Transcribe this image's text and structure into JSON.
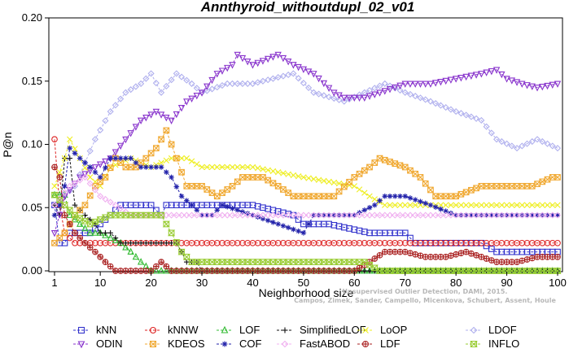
{
  "chart_data": {
    "type": "line",
    "title": "Annthyroid_withoutdupl_02_v01",
    "xlabel": "Neighborhood size",
    "ylabel": "P@n",
    "xlim": [
      1,
      100
    ],
    "ylim": [
      0,
      0.2
    ],
    "xticks": [
      "1",
      "10",
      "20",
      "30",
      "40",
      "50",
      "60",
      "70",
      "80",
      "90",
      "100"
    ],
    "yticks": [
      "0.00",
      "0.05",
      "0.10",
      "0.15",
      "0.20"
    ],
    "grid": false,
    "legend_position": "bottom",
    "annotation": "Campos, Zimek, Sander, Campello, Micenkova, Schubert, Assent, Houle",
    "annotation_line1": "Unsupervised Outlier Detection, DAMI, 2015.",
    "series": [
      {
        "name": "kNN",
        "color": "#3333cc",
        "marker": "square",
        "points": [
          [
            1,
            0.052
          ],
          [
            2,
            0.022
          ],
          [
            3,
            0.022
          ],
          [
            4,
            0.03
          ],
          [
            8,
            0.03
          ],
          [
            10,
            0.037
          ],
          [
            12,
            0.044
          ],
          [
            14,
            0.052
          ],
          [
            20,
            0.052
          ],
          [
            22,
            0.044
          ],
          [
            23,
            0.052
          ],
          [
            40,
            0.052
          ],
          [
            48,
            0.044
          ],
          [
            50,
            0.037
          ],
          [
            55,
            0.037
          ],
          [
            63,
            0.03
          ],
          [
            70,
            0.03
          ],
          [
            72,
            0.022
          ],
          [
            85,
            0.022
          ],
          [
            88,
            0.015
          ],
          [
            95,
            0.015
          ],
          [
            100,
            0.015
          ]
        ]
      },
      {
        "name": "kNNW",
        "color": "#dd2222",
        "marker": "circle",
        "points": [
          [
            1,
            0.104
          ],
          [
            2,
            0.052
          ],
          [
            3,
            0.03
          ],
          [
            5,
            0.022
          ],
          [
            100,
            0.022
          ]
        ]
      },
      {
        "name": "LOF",
        "color": "#33bb33",
        "marker": "triangle-up",
        "points": [
          [
            1,
            0.06
          ],
          [
            2,
            0.06
          ],
          [
            3,
            0.06
          ],
          [
            4,
            0.044
          ],
          [
            6,
            0.037
          ],
          [
            8,
            0.03
          ],
          [
            10,
            0.03
          ],
          [
            14,
            0.022
          ],
          [
            16,
            0.015
          ],
          [
            18,
            0.007
          ],
          [
            20,
            0.0
          ],
          [
            100,
            0.0
          ]
        ]
      },
      {
        "name": "SimplifiedLOF",
        "color": "#111111",
        "marker": "plus",
        "points": [
          [
            1,
            0.052
          ],
          [
            2,
            0.044
          ],
          [
            3,
            0.089
          ],
          [
            4,
            0.089
          ],
          [
            5,
            0.052
          ],
          [
            7,
            0.044
          ],
          [
            9,
            0.037
          ],
          [
            10,
            0.03
          ],
          [
            12,
            0.03
          ],
          [
            14,
            0.022
          ],
          [
            25,
            0.022
          ],
          [
            26,
            0.015
          ],
          [
            27,
            0.007
          ],
          [
            29,
            0.007
          ],
          [
            30,
            0.0
          ],
          [
            100,
            0.0
          ]
        ]
      },
      {
        "name": "LoOP",
        "color": "#eeee22",
        "marker": "x",
        "points": [
          [
            1,
            0.067
          ],
          [
            3,
            0.089
          ],
          [
            4,
            0.104
          ],
          [
            6,
            0.089
          ],
          [
            8,
            0.074
          ],
          [
            10,
            0.067
          ],
          [
            12,
            0.082
          ],
          [
            16,
            0.089
          ],
          [
            20,
            0.082
          ],
          [
            24,
            0.089
          ],
          [
            27,
            0.089
          ],
          [
            30,
            0.082
          ],
          [
            40,
            0.082
          ],
          [
            50,
            0.074
          ],
          [
            60,
            0.067
          ],
          [
            63,
            0.059
          ],
          [
            66,
            0.052
          ],
          [
            100,
            0.052
          ]
        ]
      },
      {
        "name": "LDOF",
        "color": "#b0b0ee",
        "marker": "diamond",
        "points": [
          [
            1,
            0.052
          ],
          [
            5,
            0.067
          ],
          [
            9,
            0.104
          ],
          [
            12,
            0.126
          ],
          [
            15,
            0.141
          ],
          [
            18,
            0.148
          ],
          [
            20,
            0.156
          ],
          [
            22,
            0.141
          ],
          [
            25,
            0.156
          ],
          [
            28,
            0.148
          ],
          [
            30,
            0.141
          ],
          [
            35,
            0.148
          ],
          [
            40,
            0.148
          ],
          [
            48,
            0.156
          ],
          [
            52,
            0.141
          ],
          [
            58,
            0.134
          ],
          [
            62,
            0.141
          ],
          [
            66,
            0.148
          ],
          [
            70,
            0.141
          ],
          [
            75,
            0.134
          ],
          [
            80,
            0.126
          ],
          [
            85,
            0.119
          ],
          [
            88,
            0.104
          ],
          [
            92,
            0.097
          ],
          [
            96,
            0.104
          ],
          [
            100,
            0.097
          ]
        ]
      },
      {
        "name": "ODIN",
        "color": "#8833cc",
        "marker": "triangle-down",
        "points": [
          [
            1,
            0.03
          ],
          [
            3,
            0.059
          ],
          [
            6,
            0.074
          ],
          [
            9,
            0.082
          ],
          [
            12,
            0.089
          ],
          [
            15,
            0.104
          ],
          [
            18,
            0.119
          ],
          [
            21,
            0.126
          ],
          [
            24,
            0.119
          ],
          [
            27,
            0.134
          ],
          [
            30,
            0.141
          ],
          [
            33,
            0.156
          ],
          [
            36,
            0.163
          ],
          [
            37,
            0.171
          ],
          [
            40,
            0.163
          ],
          [
            45,
            0.171
          ],
          [
            48,
            0.163
          ],
          [
            52,
            0.156
          ],
          [
            56,
            0.141
          ],
          [
            58,
            0.137
          ],
          [
            62,
            0.137
          ],
          [
            65,
            0.141
          ],
          [
            70,
            0.148
          ],
          [
            75,
            0.148
          ],
          [
            80,
            0.152
          ],
          [
            85,
            0.156
          ],
          [
            88,
            0.159
          ],
          [
            90,
            0.152
          ],
          [
            93,
            0.148
          ],
          [
            96,
            0.145
          ],
          [
            100,
            0.148
          ]
        ]
      },
      {
        "name": "KDEOS",
        "color": "#f0a830",
        "marker": "boxed-x",
        "points": [
          [
            1,
            0.022
          ],
          [
            3,
            0.03
          ],
          [
            5,
            0.044
          ],
          [
            7,
            0.052
          ],
          [
            9,
            0.067
          ],
          [
            11,
            0.074
          ],
          [
            13,
            0.089
          ],
          [
            15,
            0.082
          ],
          [
            17,
            0.082
          ],
          [
            19,
            0.089
          ],
          [
            21,
            0.097
          ],
          [
            23,
            0.111
          ],
          [
            25,
            0.089
          ],
          [
            27,
            0.067
          ],
          [
            30,
            0.067
          ],
          [
            33,
            0.059
          ],
          [
            36,
            0.067
          ],
          [
            38,
            0.074
          ],
          [
            42,
            0.074
          ],
          [
            45,
            0.067
          ],
          [
            48,
            0.059
          ],
          [
            52,
            0.059
          ],
          [
            56,
            0.059
          ],
          [
            60,
            0.074
          ],
          [
            63,
            0.082
          ],
          [
            65,
            0.089
          ],
          [
            70,
            0.082
          ],
          [
            73,
            0.074
          ],
          [
            76,
            0.059
          ],
          [
            80,
            0.059
          ],
          [
            85,
            0.067
          ],
          [
            90,
            0.067
          ],
          [
            95,
            0.067
          ],
          [
            99,
            0.074
          ],
          [
            100,
            0.074
          ]
        ]
      },
      {
        "name": "COF",
        "color": "#2222aa",
        "marker": "asterisk",
        "points": [
          [
            1,
            0.044
          ],
          [
            2,
            0.052
          ],
          [
            3,
            0.067
          ],
          [
            4,
            0.097
          ],
          [
            6,
            0.089
          ],
          [
            8,
            0.082
          ],
          [
            10,
            0.074
          ],
          [
            12,
            0.089
          ],
          [
            16,
            0.089
          ],
          [
            18,
            0.082
          ],
          [
            22,
            0.082
          ],
          [
            24,
            0.074
          ],
          [
            26,
            0.059
          ],
          [
            28,
            0.052
          ],
          [
            30,
            0.044
          ],
          [
            32,
            0.044
          ],
          [
            34,
            0.052
          ],
          [
            40,
            0.044
          ],
          [
            50,
            0.03
          ],
          [
            52,
            0.044
          ],
          [
            60,
            0.044
          ],
          [
            64,
            0.052
          ],
          [
            66,
            0.059
          ],
          [
            70,
            0.059
          ],
          [
            75,
            0.052
          ],
          [
            80,
            0.044
          ],
          [
            100,
            0.044
          ]
        ]
      },
      {
        "name": "FastABOD",
        "color": "#f0b0f0",
        "marker": "diamond",
        "points": [
          [
            1,
            0.052
          ],
          [
            4,
            0.067
          ],
          [
            7,
            0.074
          ],
          [
            10,
            0.059
          ],
          [
            13,
            0.052
          ],
          [
            16,
            0.044
          ],
          [
            100,
            0.044
          ]
        ]
      },
      {
        "name": "LDF",
        "color": "#aa2222",
        "marker": "circle-plus",
        "points": [
          [
            1,
            0.082
          ],
          [
            2,
            0.074
          ],
          [
            3,
            0.044
          ],
          [
            5,
            0.03
          ],
          [
            7,
            0.022
          ],
          [
            9,
            0.015
          ],
          [
            11,
            0.007
          ],
          [
            13,
            0.0
          ],
          [
            20,
            0.0
          ],
          [
            22,
            0.007
          ],
          [
            24,
            0.0
          ],
          [
            60,
            0.0
          ],
          [
            63,
            0.007
          ],
          [
            66,
            0.015
          ],
          [
            70,
            0.015
          ],
          [
            74,
            0.011
          ],
          [
            78,
            0.011
          ],
          [
            82,
            0.015
          ],
          [
            85,
            0.011
          ],
          [
            88,
            0.007
          ],
          [
            92,
            0.007
          ],
          [
            96,
            0.011
          ],
          [
            100,
            0.011
          ]
        ]
      },
      {
        "name": "INFLO",
        "color": "#99cc33",
        "marker": "hourglass",
        "points": [
          [
            1,
            0.06
          ],
          [
            3,
            0.052
          ],
          [
            5,
            0.044
          ],
          [
            8,
            0.037
          ],
          [
            12,
            0.044
          ],
          [
            15,
            0.044
          ],
          [
            19,
            0.044
          ],
          [
            22,
            0.044
          ],
          [
            24,
            0.03
          ],
          [
            26,
            0.015
          ],
          [
            28,
            0.007
          ],
          [
            62,
            0.007
          ],
          [
            65,
            0.0
          ],
          [
            100,
            0.0
          ]
        ]
      }
    ]
  }
}
